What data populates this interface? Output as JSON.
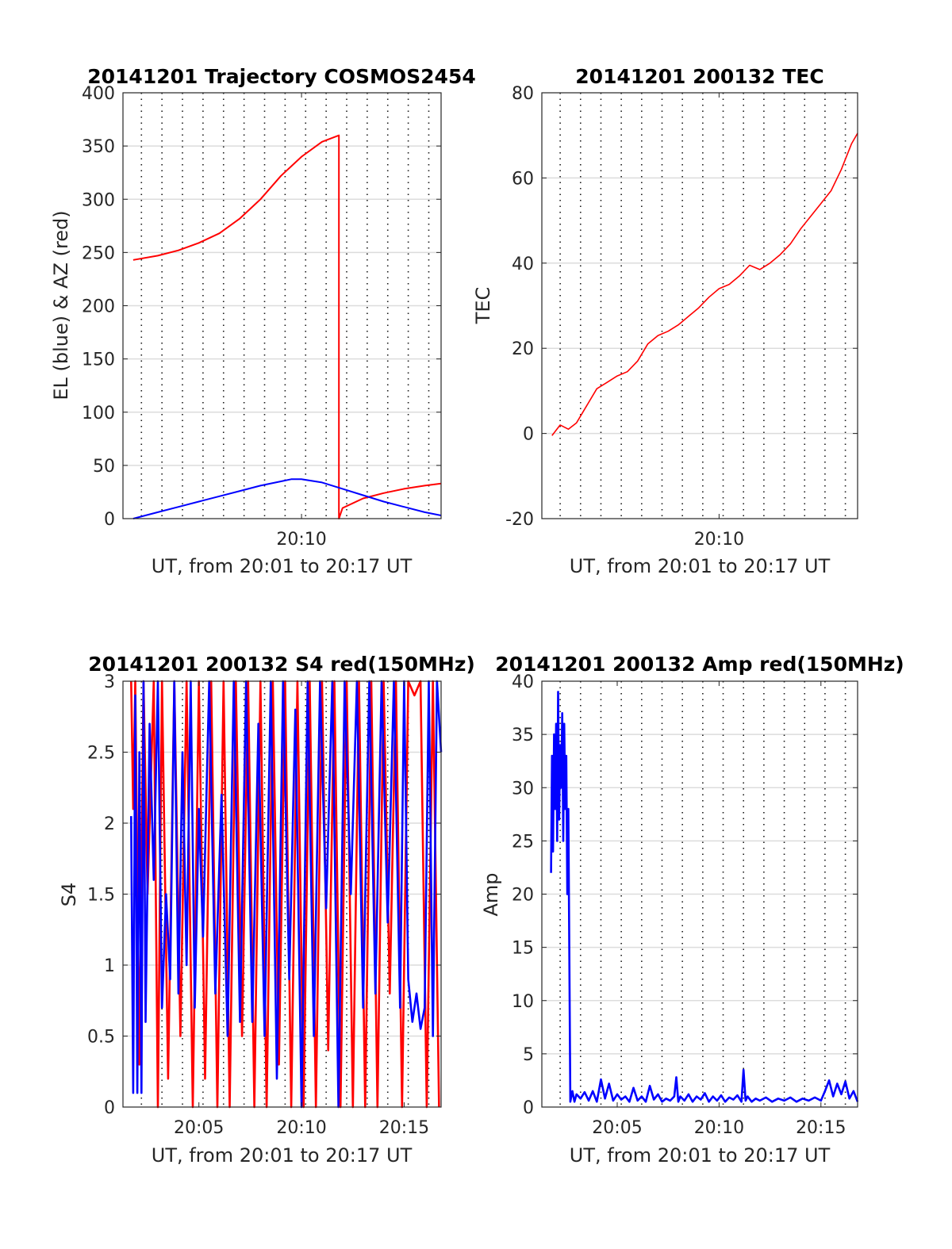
{
  "chart_data": [
    {
      "type": "line",
      "title": "20141201 Trajectory COSMOS2454",
      "xlabel": "UT, from 20:01 to 20:17 UT",
      "ylabel": "EL (blue) & AZ (red)",
      "xlim": [
        1.3,
        16.8
      ],
      "ylim": [
        0,
        400
      ],
      "yticks": [
        0,
        50,
        100,
        150,
        200,
        250,
        300,
        350,
        400
      ],
      "xticks": [
        {
          "x": 10,
          "label": "20:10"
        }
      ],
      "grid_x": [
        2.2,
        3.2,
        4.2,
        5.2,
        6.2,
        7.2,
        8.2,
        9.2,
        10.2,
        11.2,
        12.2,
        13.2,
        14.2,
        15.2,
        16.2
      ],
      "series": [
        {
          "color": "#ff0000",
          "x": [
            1.8,
            3,
            4,
            5,
            6,
            7,
            8,
            9,
            10,
            11,
            11.82,
            11.82,
            12,
            13,
            14,
            15,
            16,
            16.8
          ],
          "y": [
            243,
            247,
            252,
            259,
            268,
            282,
            300,
            322,
            340,
            354,
            360,
            0,
            10,
            19,
            24,
            28,
            31,
            33
          ]
        },
        {
          "color": "#0000ff",
          "x": [
            1.8,
            3,
            4,
            5,
            6,
            7,
            8,
            9,
            9.5,
            10,
            11,
            12,
            13,
            14,
            15,
            16,
            16.8
          ],
          "y": [
            0,
            6,
            11,
            16,
            21,
            26,
            31,
            35,
            37,
            37,
            34,
            28,
            22,
            16,
            11,
            6,
            3
          ]
        }
      ]
    },
    {
      "type": "line",
      "title": "20141201 200132 TEC",
      "xlabel": "UT, from 20:01 to 20:17 UT",
      "ylabel": "TEC",
      "xlim": [
        1.3,
        16.8
      ],
      "ylim": [
        -20,
        80
      ],
      "yticks": [
        -20,
        0,
        20,
        40,
        60,
        80
      ],
      "xticks": [
        {
          "x": 10,
          "label": "20:10"
        }
      ],
      "grid_x": [
        2.2,
        3.2,
        4.2,
        5.2,
        6.2,
        7.2,
        8.2,
        9.2,
        10.2,
        11.2,
        12.2,
        13.2,
        14.2,
        15.2,
        16.2
      ],
      "series": [
        {
          "color": "#ff0000",
          "x": [
            1.8,
            2.2,
            2.6,
            3,
            3.5,
            4,
            4.5,
            5,
            5.5,
            6,
            6.5,
            7,
            7.5,
            8,
            8.5,
            9,
            9.5,
            10,
            10.5,
            11,
            11.5,
            12,
            12.5,
            13,
            13.5,
            14,
            14.5,
            15,
            15.5,
            16,
            16.5,
            16.8
          ],
          "y": [
            -0.5,
            2,
            1,
            2.5,
            6.5,
            10.5,
            12,
            13.5,
            14.5,
            17,
            21,
            23,
            24,
            25.5,
            27.5,
            29.5,
            32,
            34,
            35,
            37,
            39.5,
            38.5,
            40,
            42,
            44.5,
            48,
            51,
            54,
            57,
            62,
            68,
            70.5
          ]
        }
      ]
    },
    {
      "type": "line",
      "title": "20141201 200132 S4 red(150MHz)",
      "xlabel": "UT, from 20:01 to 20:17 UT",
      "ylabel": "S4",
      "xlim": [
        1.3,
        16.8
      ],
      "ylim": [
        0,
        3
      ],
      "yticks": [
        0,
        0.5,
        1,
        1.5,
        2,
        2.5,
        3
      ],
      "xticks": [
        {
          "x": 5,
          "label": "20:05"
        },
        {
          "x": 10,
          "label": "20:10"
        },
        {
          "x": 15,
          "label": "20:15"
        }
      ],
      "grid_x": [
        2.2,
        3.2,
        4.2,
        5.2,
        6.2,
        7.2,
        8.2,
        9.2,
        10.2,
        11.2,
        12.2,
        13.2,
        14.2,
        15.2,
        16.2
      ],
      "series": [
        {
          "color": "#ff0000",
          "x": [
            1.7,
            1.8,
            1.9,
            2.1,
            2.3,
            2.5,
            2.8,
            3.0,
            3.2,
            3.5,
            3.8,
            4.1,
            4.4,
            4.7,
            5.0,
            5.3,
            5.6,
            5.9,
            6.2,
            6.5,
            6.8,
            7.1,
            7.4,
            7.7,
            8.0,
            8.3,
            8.6,
            8.9,
            9.2,
            9.5,
            9.8,
            10.1,
            10.4,
            10.7,
            11.0,
            11.3,
            11.6,
            11.9,
            12.2,
            12.5,
            12.8,
            13.1,
            13.4,
            13.7,
            14.0,
            14.3,
            14.6,
            14.9,
            15.2,
            15.5,
            15.8,
            16.1,
            16.4,
            16.7
          ],
          "y": [
            3,
            2.1,
            3,
            0.3,
            3,
            1.5,
            3,
            0,
            3,
            0.2,
            3,
            0.5,
            3,
            0,
            3,
            0.2,
            3,
            0,
            3,
            0,
            3,
            0.5,
            3,
            0,
            3,
            0,
            3,
            0.3,
            3,
            0,
            3,
            0,
            3,
            0,
            3,
            0.4,
            3,
            0,
            3,
            0,
            3,
            0,
            3,
            0,
            3,
            0.8,
            3,
            0,
            3,
            2.9,
            3,
            0,
            3,
            0
          ]
        },
        {
          "color": "#0000ff",
          "x": [
            1.7,
            1.8,
            1.9,
            2.0,
            2.1,
            2.2,
            2.3,
            2.4,
            2.6,
            2.8,
            3.0,
            3.2,
            3.4,
            3.6,
            3.8,
            4.0,
            4.2,
            4.4,
            4.6,
            4.8,
            5.0,
            5.2,
            5.5,
            5.8,
            6.1,
            6.4,
            6.7,
            7.0,
            7.3,
            7.6,
            7.9,
            8.2,
            8.5,
            8.8,
            9.1,
            9.4,
            9.7,
            10.0,
            10.3,
            10.6,
            10.9,
            11.2,
            11.5,
            11.8,
            12.1,
            12.4,
            12.7,
            13.0,
            13.3,
            13.6,
            13.9,
            14.2,
            14.5,
            14.8,
            15.0,
            15.2,
            15.4,
            15.6,
            15.8,
            16.0,
            16.2,
            16.4,
            16.6,
            16.8
          ],
          "y": [
            2.05,
            0.1,
            2.9,
            0.1,
            2.5,
            0.1,
            3,
            0.6,
            2.7,
            1.6,
            3,
            0.7,
            1.5,
            0.9,
            3,
            0.8,
            2.5,
            1.0,
            3,
            0.7,
            2.1,
            1.2,
            3,
            0.8,
            2.2,
            0.5,
            3,
            0.6,
            3,
            0.6,
            2.7,
            0.5,
            3,
            0.2,
            3,
            0.9,
            2.8,
            0,
            3,
            0.5,
            3,
            1.4,
            3,
            0,
            3,
            1.5,
            3,
            0.7,
            3,
            0.8,
            3,
            1.3,
            3,
            0.7,
            3,
            0.9,
            0.6,
            0.8,
            0.55,
            0.7,
            3,
            0.5,
            3,
            2.5
          ]
        }
      ]
    },
    {
      "type": "line",
      "title": "20141201 200132 Amp red(150MHz)",
      "xlabel": "UT, from 20:01 to 20:17 UT",
      "ylabel": "Amp",
      "xlim": [
        1.3,
        16.8
      ],
      "ylim": [
        0,
        40
      ],
      "yticks": [
        0,
        5,
        10,
        15,
        20,
        25,
        30,
        35,
        40
      ],
      "xticks": [
        {
          "x": 5,
          "label": "20:05"
        },
        {
          "x": 10,
          "label": "20:10"
        },
        {
          "x": 15,
          "label": "20:15"
        }
      ],
      "grid_x": [
        2.2,
        3.2,
        4.2,
        5.2,
        6.2,
        7.2,
        8.2,
        9.2,
        10.2,
        11.2,
        12.2,
        13.2,
        14.2,
        15.2,
        16.2
      ],
      "series": [
        {
          "color": "#0000ff",
          "x": [
            1.75,
            1.8,
            1.85,
            1.9,
            1.95,
            2.0,
            2.05,
            2.1,
            2.15,
            2.2,
            2.25,
            2.3,
            2.35,
            2.4,
            2.45,
            2.5,
            2.55,
            2.6,
            2.7,
            2.8,
            2.9,
            3.0,
            3.2,
            3.4,
            3.6,
            3.8,
            4.0,
            4.2,
            4.4,
            4.6,
            4.8,
            5.0,
            5.2,
            5.4,
            5.6,
            5.8,
            6.0,
            6.2,
            6.4,
            6.6,
            6.8,
            7.0,
            7.2,
            7.4,
            7.6,
            7.8,
            7.9,
            8.0,
            8.1,
            8.3,
            8.5,
            8.7,
            8.9,
            9.1,
            9.3,
            9.5,
            9.7,
            9.9,
            10.1,
            10.3,
            10.5,
            10.7,
            10.9,
            11.1,
            11.2,
            11.3,
            11.4,
            11.6,
            11.8,
            12.0,
            12.3,
            12.6,
            12.9,
            13.2,
            13.5,
            13.8,
            14.1,
            14.4,
            14.7,
            15.0,
            15.2,
            15.4,
            15.6,
            15.8,
            16.0,
            16.2,
            16.4,
            16.6,
            16.8
          ],
          "y": [
            22,
            33,
            24,
            35,
            28,
            36,
            25,
            39,
            27,
            34,
            30,
            37,
            25,
            36,
            28,
            33,
            20,
            28,
            0.5,
            1.5,
            0.5,
            1.2,
            0.8,
            1.4,
            0.6,
            1.5,
            0.5,
            2.6,
            0.8,
            2.2,
            0.6,
            1.2,
            0.7,
            1.0,
            0.5,
            1.8,
            0.6,
            1.0,
            0.5,
            2.0,
            0.7,
            1.2,
            0.5,
            0.8,
            0.6,
            1.0,
            2.8,
            0.5,
            1.0,
            0.6,
            1.2,
            0.5,
            1.0,
            0.7,
            1.3,
            0.5,
            1.0,
            0.6,
            1.1,
            0.5,
            0.9,
            0.7,
            1.1,
            0.5,
            3.5,
            0.6,
            1.0,
            0.5,
            0.8,
            0.6,
            0.9,
            0.5,
            0.8,
            0.6,
            0.9,
            0.5,
            0.8,
            0.6,
            0.9,
            0.6,
            1.5,
            2.5,
            1.0,
            2.2,
            1.2,
            2.4,
            0.8,
            1.5,
            0.5
          ]
        }
      ]
    }
  ]
}
